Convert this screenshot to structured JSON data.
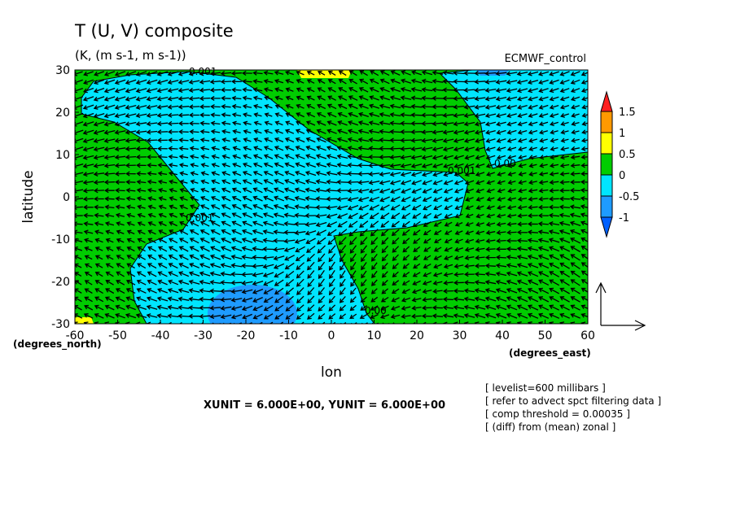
{
  "chart_data": {
    "type": "contour",
    "title": "T (U, V) composite",
    "subtitle": "(K, (m s-1, m s-1))",
    "dataset_label": "ECMWF_control",
    "x_label": "lon",
    "y_label": "latitude",
    "x_units": "(degrees_east)",
    "y_units": "(degrees_north)",
    "xlim": [
      -60,
      60
    ],
    "ylim": [
      -30,
      30
    ],
    "xticks": [
      -60,
      -50,
      -40,
      -30,
      -20,
      -10,
      0,
      10,
      20,
      30,
      40,
      50,
      60
    ],
    "yticks": [
      -30,
      -20,
      -10,
      0,
      10,
      20,
      30
    ],
    "colorbar": {
      "levels": [
        1.5,
        1,
        0.5,
        0,
        -0.5,
        -1
      ],
      "colors": [
        "#ff2020",
        "#ff9900",
        "#ffff00",
        "#00cc00",
        "#00e5ff",
        "#1e9bff",
        "#0060ff"
      ]
    },
    "contour_labels": [
      "0.001",
      "0.001",
      "0.001",
      "0.00",
      "0.00"
    ],
    "vector_units": "XUNIT = 6.000E+00, YUNIT = 6.000E+00",
    "notes": [
      "[ levelist=600 millibars ]",
      "[ refer to advect spct filtering data ]",
      "[ comp threshold = 0.00035 ]",
      "[ (diff) from (mean) zonal ]"
    ]
  }
}
